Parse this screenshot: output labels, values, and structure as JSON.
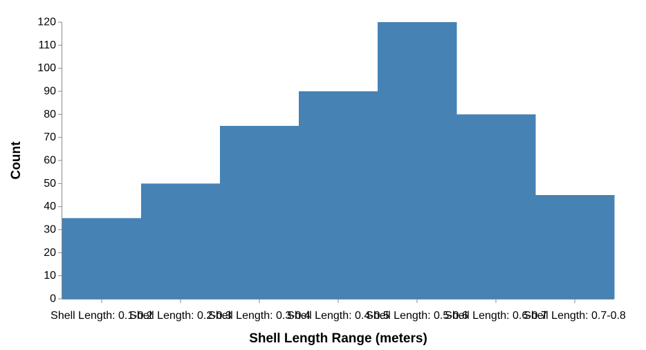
{
  "chart_data": {
    "type": "bar",
    "categories": [
      "Shell Length: 0.1-0.2",
      "Shell Length: 0.2-0.3",
      "Shell Length: 0.3-0.4",
      "Shell Length: 0.4-0.5",
      "Shell Length: 0.5-0.6",
      "Shell Length: 0.6-0.7",
      "Shell Length: 0.7-0.8"
    ],
    "values": [
      35,
      50,
      75,
      90,
      120,
      80,
      45
    ],
    "xlabel": "Shell Length Range (meters)",
    "ylabel": "Count",
    "ylim": [
      0,
      120
    ],
    "yticks": [
      0,
      10,
      20,
      30,
      40,
      50,
      60,
      70,
      80,
      90,
      100,
      110,
      120
    ],
    "grid": false,
    "legend": "none",
    "bar_color": "#4682b4"
  }
}
